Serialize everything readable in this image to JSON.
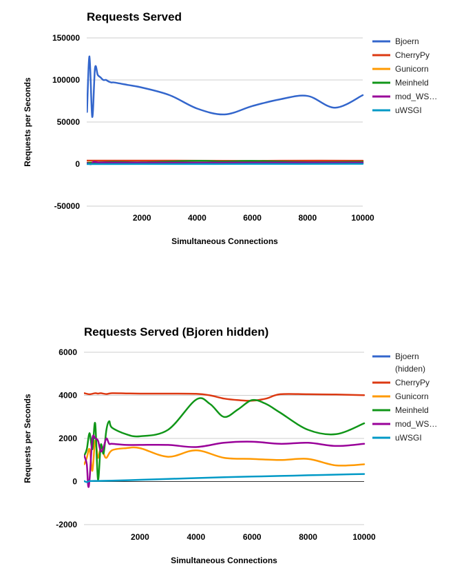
{
  "chart_data": [
    {
      "type": "line",
      "title": "Requests Served",
      "xlabel": "Simultaneous Connections",
      "ylabel": "Requests per Seconds",
      "xlim": [
        0,
        10000
      ],
      "ylim": [
        -50000,
        150000
      ],
      "xticks": [
        2000,
        4000,
        6000,
        8000,
        10000
      ],
      "yticks": [
        -50000,
        0,
        50000,
        100000,
        150000
      ],
      "grid": true,
      "legend": "right",
      "series": [
        {
          "name": "Bjoern",
          "color": "#3366cc",
          "x": [
            10,
            100,
            200,
            300,
            400,
            500,
            600,
            700,
            800,
            900,
            1000,
            1500,
            2000,
            3000,
            4000,
            5000,
            6000,
            7000,
            8000,
            9000,
            10000
          ],
          "y": [
            62000,
            128000,
            56000,
            114000,
            106000,
            103000,
            100000,
            100000,
            98000,
            97000,
            97000,
            94000,
            91000,
            82000,
            66000,
            59000,
            69000,
            77000,
            81000,
            67000,
            82000
          ]
        },
        {
          "name": "CherryPy",
          "color": "#dc3912",
          "x": [
            10,
            1000,
            4000,
            6000,
            7000,
            10000
          ],
          "y": [
            4100,
            4100,
            4050,
            3800,
            4050,
            4000
          ]
        },
        {
          "name": "Gunicorn",
          "color": "#ff9900",
          "x": [
            10,
            1000,
            2000,
            4000,
            5000,
            8000,
            10000
          ],
          "y": [
            1400,
            1450,
            1550,
            1450,
            1050,
            1050,
            800
          ]
        },
        {
          "name": "Meinheld",
          "color": "#109618",
          "x": [
            10,
            1000,
            2000,
            4000,
            5000,
            6000,
            8000,
            10000
          ],
          "y": [
            1500,
            2500,
            2100,
            3850,
            3000,
            3750,
            2300,
            2700
          ]
        },
        {
          "name": "mod_WS…",
          "color": "#990099",
          "x": [
            10,
            150,
            250,
            400,
            500,
            600,
            1000,
            3000,
            6000,
            8000,
            10000
          ],
          "y": [
            1200,
            -200,
            2600,
            2000,
            1600,
            2000,
            1750,
            1700,
            1850,
            1800,
            1750
          ]
        },
        {
          "name": "uWSGI",
          "color": "#0099c6",
          "x": [
            10,
            2000,
            6000,
            10000
          ],
          "y": [
            30,
            80,
            200,
            350
          ]
        }
      ]
    },
    {
      "type": "line",
      "title": "Requests Served (Bjoren hidden)",
      "xlabel": "Simultaneous Connections",
      "ylabel": "Requests per Seconds",
      "xlim": [
        0,
        10000
      ],
      "ylim": [
        -2000,
        6000
      ],
      "xticks": [
        2000,
        4000,
        6000,
        8000,
        10000
      ],
      "yticks": [
        -2000,
        0,
        2000,
        4000,
        6000
      ],
      "grid": true,
      "legend": "right",
      "series": [
        {
          "name": "Bjoern (hidden)",
          "legend_lines": [
            "Bjoern",
            "(hidden)"
          ],
          "color": "#3366cc",
          "x": [],
          "y": []
        },
        {
          "name": "CherryPy",
          "color": "#dc3912",
          "x": [
            10,
            200,
            400,
            500,
            600,
            800,
            1000,
            1500,
            2000,
            3000,
            4000,
            4500,
            5000,
            5500,
            6000,
            6500,
            7000,
            8000,
            9000,
            10000
          ],
          "y": [
            4100,
            4050,
            4100,
            4080,
            4100,
            4060,
            4100,
            4090,
            4080,
            4080,
            4070,
            4000,
            3850,
            3780,
            3750,
            3850,
            4050,
            4050,
            4040,
            4010
          ]
        },
        {
          "name": "Gunicorn",
          "color": "#ff9900",
          "x": [
            10,
            100,
            200,
            300,
            400,
            500,
            600,
            700,
            800,
            1000,
            1500,
            2000,
            3000,
            4000,
            5000,
            6000,
            7000,
            8000,
            9000,
            10000
          ],
          "y": [
            800,
            1100,
            1500,
            500,
            1900,
            1100,
            1600,
            1300,
            1100,
            1450,
            1550,
            1550,
            1150,
            1450,
            1100,
            1050,
            1000,
            1050,
            750,
            800
          ]
        },
        {
          "name": "Meinheld",
          "color": "#109618",
          "x": [
            10,
            100,
            200,
            300,
            400,
            500,
            600,
            700,
            800,
            900,
            1000,
            1500,
            2000,
            3000,
            4000,
            4500,
            5000,
            5500,
            6000,
            6500,
            7000,
            8000,
            9000,
            10000
          ],
          "y": [
            1200,
            1500,
            2250,
            1500,
            2700,
            100,
            1700,
            1300,
            2400,
            2800,
            2500,
            2200,
            2100,
            2400,
            3800,
            3600,
            3000,
            3350,
            3780,
            3600,
            3200,
            2400,
            2200,
            2700
          ]
        },
        {
          "name": "mod_WS…",
          "color": "#990099",
          "x": [
            10,
            100,
            150,
            200,
            300,
            400,
            500,
            600,
            700,
            800,
            900,
            1000,
            1500,
            2000,
            3000,
            4000,
            5000,
            6000,
            7000,
            8000,
            9000,
            10000
          ],
          "y": [
            1200,
            800,
            -200,
            100,
            2000,
            2000,
            1900,
            1400,
            1600,
            2000,
            1750,
            1750,
            1700,
            1700,
            1700,
            1600,
            1800,
            1850,
            1750,
            1800,
            1650,
            1750
          ]
        },
        {
          "name": "uWSGI",
          "color": "#0099c6",
          "x": [
            10,
            100,
            200,
            500,
            1000,
            2000,
            3000,
            4000,
            5000,
            6000,
            7000,
            8000,
            9000,
            10000
          ],
          "y": [
            20,
            -30,
            20,
            30,
            40,
            80,
            120,
            160,
            200,
            230,
            260,
            290,
            320,
            350
          ]
        }
      ]
    }
  ]
}
